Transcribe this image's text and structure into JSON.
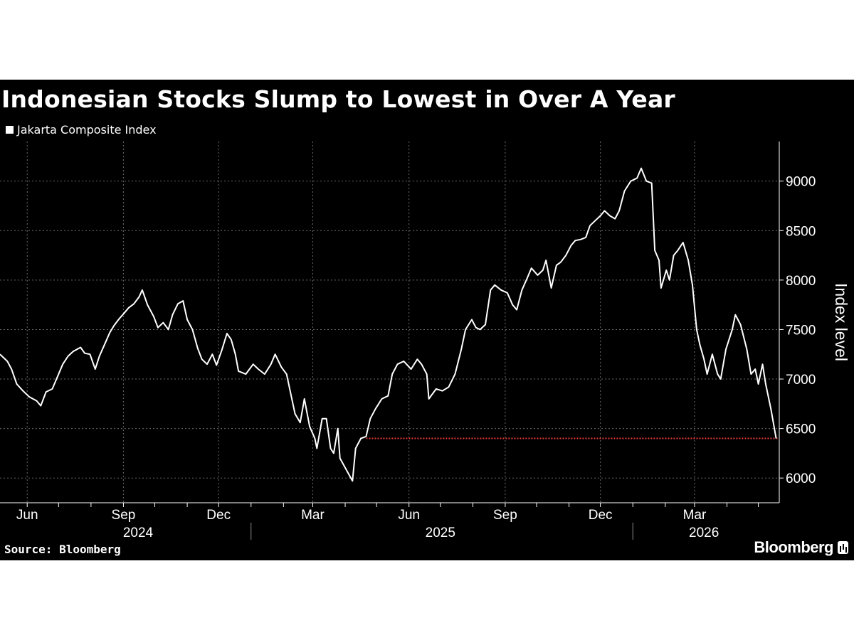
{
  "chart_data": {
    "type": "line",
    "title": "Indonesian Stocks Slump to Lowest in Over A Year",
    "series": [
      {
        "name": "Jakarta Composite Index",
        "color": "#ffffff",
        "points": [
          [
            "2024-05-06",
            7250
          ],
          [
            "2024-05-13",
            7180
          ],
          [
            "2024-05-17",
            7100
          ],
          [
            "2024-05-22",
            6950
          ],
          [
            "2024-05-28",
            6880
          ],
          [
            "2024-06-03",
            6820
          ],
          [
            "2024-06-10",
            6780
          ],
          [
            "2024-06-14",
            6730
          ],
          [
            "2024-06-19",
            6870
          ],
          [
            "2024-06-25",
            6900
          ],
          [
            "2024-07-01",
            7050
          ],
          [
            "2024-07-05",
            7150
          ],
          [
            "2024-07-10",
            7230
          ],
          [
            "2024-07-15",
            7280
          ],
          [
            "2024-07-22",
            7320
          ],
          [
            "2024-07-26",
            7260
          ],
          [
            "2024-07-31",
            7250
          ],
          [
            "2024-08-05",
            7100
          ],
          [
            "2024-08-09",
            7230
          ],
          [
            "2024-08-14",
            7350
          ],
          [
            "2024-08-19",
            7470
          ],
          [
            "2024-08-23",
            7540
          ],
          [
            "2024-08-28",
            7610
          ],
          [
            "2024-09-02",
            7670
          ],
          [
            "2024-09-06",
            7720
          ],
          [
            "2024-09-11",
            7760
          ],
          [
            "2024-09-16",
            7830
          ],
          [
            "2024-09-19",
            7900
          ],
          [
            "2024-09-24",
            7750
          ],
          [
            "2024-09-30",
            7630
          ],
          [
            "2024-10-04",
            7520
          ],
          [
            "2024-10-09",
            7570
          ],
          [
            "2024-10-14",
            7500
          ],
          [
            "2024-10-18",
            7650
          ],
          [
            "2024-10-23",
            7760
          ],
          [
            "2024-10-28",
            7790
          ],
          [
            "2024-11-01",
            7600
          ],
          [
            "2024-11-06",
            7500
          ],
          [
            "2024-11-11",
            7310
          ],
          [
            "2024-11-15",
            7200
          ],
          [
            "2024-11-20",
            7150
          ],
          [
            "2024-11-25",
            7250
          ],
          [
            "2024-11-29",
            7140
          ],
          [
            "2024-12-04",
            7290
          ],
          [
            "2024-12-09",
            7460
          ],
          [
            "2024-12-13",
            7400
          ],
          [
            "2024-12-17",
            7250
          ],
          [
            "2024-12-20",
            7080
          ],
          [
            "2024-12-27",
            7050
          ],
          [
            "2025-01-03",
            7150
          ],
          [
            "2025-01-08",
            7100
          ],
          [
            "2025-01-14",
            7050
          ],
          [
            "2025-01-20",
            7150
          ],
          [
            "2025-01-24",
            7250
          ],
          [
            "2025-01-30",
            7120
          ],
          [
            "2025-02-04",
            7050
          ],
          [
            "2025-02-07",
            6900
          ],
          [
            "2025-02-12",
            6650
          ],
          [
            "2025-02-17",
            6560
          ],
          [
            "2025-02-21",
            6800
          ],
          [
            "2025-02-26",
            6520
          ],
          [
            "2025-03-03",
            6400
          ],
          [
            "2025-03-05",
            6300
          ],
          [
            "2025-03-10",
            6600
          ],
          [
            "2025-03-14",
            6600
          ],
          [
            "2025-03-18",
            6300
          ],
          [
            "2025-03-21",
            6250
          ],
          [
            "2025-03-25",
            6500
          ],
          [
            "2025-03-27",
            6200
          ],
          [
            "2025-04-08",
            5970
          ],
          [
            "2025-04-11",
            6300
          ],
          [
            "2025-04-16",
            6400
          ],
          [
            "2025-04-21",
            6420
          ],
          [
            "2025-04-25",
            6600
          ],
          [
            "2025-04-30",
            6700
          ],
          [
            "2025-05-06",
            6800
          ],
          [
            "2025-05-12",
            6830
          ],
          [
            "2025-05-16",
            7050
          ],
          [
            "2025-05-21",
            7150
          ],
          [
            "2025-05-27",
            7180
          ],
          [
            "2025-06-03",
            7100
          ],
          [
            "2025-06-09",
            7200
          ],
          [
            "2025-06-13",
            7150
          ],
          [
            "2025-06-18",
            7050
          ],
          [
            "2025-06-20",
            6800
          ],
          [
            "2025-06-27",
            6900
          ],
          [
            "2025-07-03",
            6880
          ],
          [
            "2025-07-09",
            6920
          ],
          [
            "2025-07-15",
            7050
          ],
          [
            "2025-07-21",
            7300
          ],
          [
            "2025-07-25",
            7500
          ],
          [
            "2025-07-31",
            7600
          ],
          [
            "2025-08-04",
            7520
          ],
          [
            "2025-08-08",
            7500
          ],
          [
            "2025-08-13",
            7550
          ],
          [
            "2025-08-18",
            7900
          ],
          [
            "2025-08-22",
            7950
          ],
          [
            "2025-08-28",
            7900
          ],
          [
            "2025-09-03",
            7870
          ],
          [
            "2025-09-08",
            7750
          ],
          [
            "2025-09-12",
            7700
          ],
          [
            "2025-09-17",
            7900
          ],
          [
            "2025-09-22",
            8020
          ],
          [
            "2025-09-26",
            8120
          ],
          [
            "2025-10-02",
            8050
          ],
          [
            "2025-10-07",
            8100
          ],
          [
            "2025-10-10",
            8200
          ],
          [
            "2025-10-15",
            7920
          ],
          [
            "2025-10-20",
            8150
          ],
          [
            "2025-10-24",
            8180
          ],
          [
            "2025-10-29",
            8250
          ],
          [
            "2025-11-03",
            8350
          ],
          [
            "2025-11-07",
            8400
          ],
          [
            "2025-11-12",
            8410
          ],
          [
            "2025-11-17",
            8430
          ],
          [
            "2025-11-21",
            8550
          ],
          [
            "2025-11-26",
            8600
          ],
          [
            "2025-12-01",
            8650
          ],
          [
            "2025-12-05",
            8700
          ],
          [
            "2025-12-10",
            8650
          ],
          [
            "2025-12-15",
            8620
          ],
          [
            "2025-12-19",
            8700
          ],
          [
            "2025-12-24",
            8900
          ],
          [
            "2025-12-30",
            9000
          ],
          [
            "2026-01-05",
            9030
          ],
          [
            "2026-01-09",
            9130
          ],
          [
            "2026-01-14",
            9000
          ],
          [
            "2026-01-19",
            8980
          ],
          [
            "2026-01-22",
            8300
          ],
          [
            "2026-01-26",
            8200
          ],
          [
            "2026-01-28",
            7920
          ],
          [
            "2026-02-02",
            8100
          ],
          [
            "2026-02-05",
            8000
          ],
          [
            "2026-02-09",
            8250
          ],
          [
            "2026-02-13",
            8300
          ],
          [
            "2026-02-18",
            8380
          ],
          [
            "2026-02-23",
            8200
          ],
          [
            "2026-02-27",
            7950
          ],
          [
            "2026-03-03",
            7500
          ],
          [
            "2026-03-06",
            7350
          ],
          [
            "2026-03-10",
            7200
          ],
          [
            "2026-03-13",
            7050
          ],
          [
            "2026-03-18",
            7250
          ],
          [
            "2026-03-23",
            7050
          ],
          [
            "2026-03-26",
            7000
          ],
          [
            "2026-03-31",
            7300
          ],
          [
            "2026-04-06",
            7500
          ],
          [
            "2026-04-09",
            7650
          ],
          [
            "2026-04-14",
            7550
          ],
          [
            "2026-04-20",
            7300
          ],
          [
            "2026-04-24",
            7050
          ],
          [
            "2026-04-28",
            7100
          ],
          [
            "2026-05-01",
            6950
          ],
          [
            "2026-05-05",
            7150
          ],
          [
            "2026-05-08",
            6950
          ],
          [
            "2026-05-13",
            6700
          ],
          [
            "2026-05-18",
            6400
          ]
        ]
      }
    ],
    "reference_line": {
      "value": 6400,
      "color": "#e53935",
      "style": "dotted",
      "from": "2025-04-21"
    },
    "y_axis": {
      "label": "Index level",
      "position": "right",
      "range": [
        5750,
        9400
      ],
      "ticks": [
        6000,
        6500,
        7000,
        7500,
        8000,
        8500,
        9000
      ]
    },
    "x_axis": {
      "range": [
        "2024-05-06",
        "2026-05-21"
      ],
      "month_labels": [
        {
          "date": "2024-06-01",
          "label": "Jun"
        },
        {
          "date": "2024-09-01",
          "label": "Sep"
        },
        {
          "date": "2024-12-01",
          "label": "Dec"
        },
        {
          "date": "2025-03-01",
          "label": "Mar"
        },
        {
          "date": "2025-06-01",
          "label": "Jun"
        },
        {
          "date": "2025-09-01",
          "label": "Sep"
        },
        {
          "date": "2025-12-01",
          "label": "Dec"
        },
        {
          "date": "2026-03-01",
          "label": "Mar"
        }
      ],
      "year_labels": [
        {
          "year": "2024",
          "center": "2024-09-15"
        },
        {
          "year": "2025",
          "center": "2025-07-01"
        },
        {
          "year": "2026",
          "center": "2026-03-10"
        }
      ],
      "year_boundaries": [
        "2025-01-01",
        "2026-01-01"
      ],
      "gridline_dates": [
        "2024-06-01",
        "2024-09-01",
        "2024-12-01",
        "2025-03-01",
        "2025-06-01",
        "2025-09-01",
        "2025-12-01",
        "2026-03-01"
      ],
      "minor_tick_dates": [
        "2024-06-01",
        "2024-07-01",
        "2024-08-01",
        "2024-09-01",
        "2024-10-01",
        "2024-11-01",
        "2024-12-01",
        "2025-01-01",
        "2025-02-01",
        "2025-03-01",
        "2025-04-01",
        "2025-05-01",
        "2025-06-01",
        "2025-07-01",
        "2025-08-01",
        "2025-09-01",
        "2025-10-01",
        "2025-11-01",
        "2025-12-01",
        "2026-01-01",
        "2026-02-01",
        "2026-03-01",
        "2026-04-01",
        "2026-05-01"
      ]
    },
    "grid": true,
    "legend": "top-left"
  },
  "footer": {
    "source": "Source: Bloomberg",
    "brand": "Bloomberg"
  }
}
